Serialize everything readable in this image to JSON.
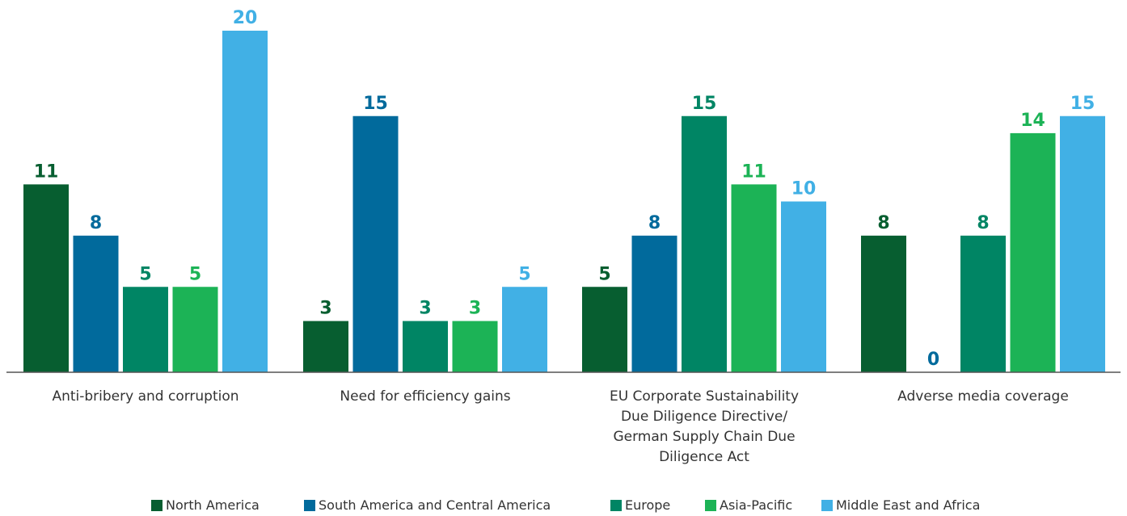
{
  "chart_data": {
    "type": "bar",
    "categories": [
      [
        "Anti-bribery and corruption"
      ],
      [
        "Need for efficiency gains"
      ],
      [
        "EU Corporate Sustainability",
        "Due Diligence Directive/",
        "German Supply Chain Due",
        "Diligence Act"
      ],
      [
        "Adverse media coverage"
      ]
    ],
    "series": [
      {
        "name": "North America",
        "color": "#075e30",
        "values": [
          11,
          3,
          5,
          8
        ]
      },
      {
        "name": "South America and Central America",
        "color": "#016a9c",
        "values": [
          8,
          15,
          8,
          0
        ]
      },
      {
        "name": "Europe",
        "color": "#008564",
        "values": [
          5,
          3,
          15,
          8
        ]
      },
      {
        "name": "Asia-Pacific",
        "color": "#1cb356",
        "values": [
          5,
          3,
          11,
          14
        ]
      },
      {
        "name": "Middle East and Africa",
        "color": "#41b0e5",
        "values": [
          20,
          5,
          10,
          15
        ]
      }
    ],
    "ylim": [
      0,
      20
    ],
    "grid": false,
    "legend_position": "bottom"
  }
}
